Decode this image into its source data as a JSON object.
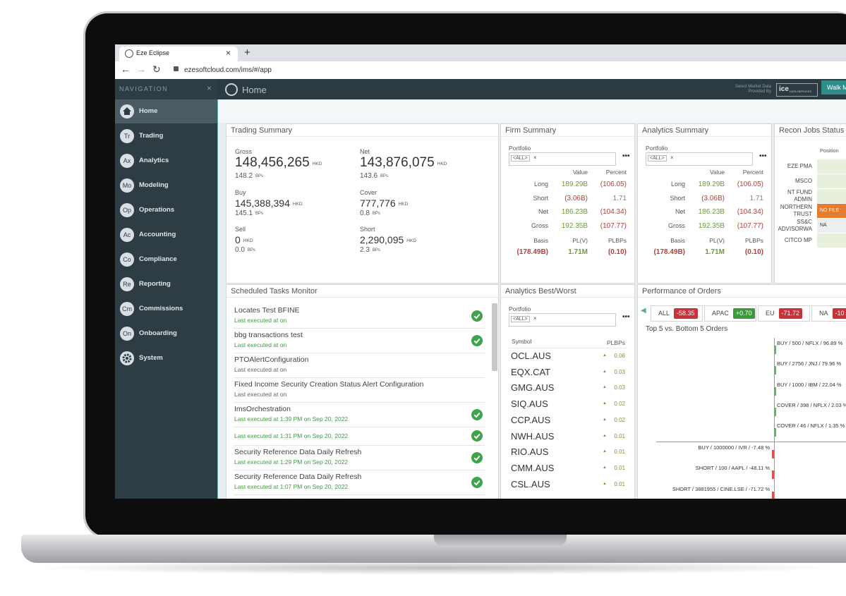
{
  "browser": {
    "tab_title": "Eze Eclipse",
    "url": "ezesoftcloud.com/ims/#/app"
  },
  "header": {
    "title": "Home",
    "market_data": "Select Market Data Provided By",
    "provider": "ice",
    "provider_sub": "DATA SERVICES",
    "button": "Walk M"
  },
  "navigation": {
    "heading": "NAVIGATION",
    "items": [
      {
        "label": "Home"
      },
      {
        "icon": "Tr",
        "label": "Trading"
      },
      {
        "icon": "Ax",
        "label": "Analytics"
      },
      {
        "icon": "Mo",
        "label": "Modeling"
      },
      {
        "icon": "Op",
        "label": "Operations"
      },
      {
        "icon": "Ac",
        "label": "Accounting"
      },
      {
        "icon": "Co",
        "label": "Compliance"
      },
      {
        "icon": "Re",
        "label": "Reporting"
      },
      {
        "icon": "Cm",
        "label": "Commissions"
      },
      {
        "icon": "On",
        "label": "Onboarding"
      },
      {
        "label": "System"
      }
    ]
  },
  "trading_summary": {
    "title": "Trading Summary",
    "fields": [
      {
        "label": "Gross",
        "value": "148,456,265",
        "unit": "HKD",
        "bps": "148.2",
        "bps_unit": "BPs"
      },
      {
        "label": "Net",
        "value": "143,876,075",
        "unit": "HKD",
        "bps": "143.6",
        "bps_unit": "BPs"
      },
      {
        "label": "Buy",
        "value": "145,388,394",
        "unit": "HKD",
        "bps": "145.1",
        "bps_unit": "BPs"
      },
      {
        "label": "Cover",
        "value": "777,776",
        "unit": "HKD",
        "bps": "0.8",
        "bps_unit": "BPs"
      },
      {
        "label": "Sell",
        "value": "0",
        "unit": "HKD",
        "bps": "0.0",
        "bps_unit": "BPs"
      },
      {
        "label": "Short",
        "value": "2,290,095",
        "unit": "HKD",
        "bps": "2.3",
        "bps_unit": "BPs"
      }
    ]
  },
  "firm_summary": {
    "title": "Firm Summary",
    "portfolio_label": "Portfolio",
    "portfolio": "<ALL>",
    "columns": [
      "Value",
      "Percent"
    ],
    "rows": [
      {
        "label": "Long",
        "value": "189.29B",
        "percent": "(106.05)"
      },
      {
        "label": "Short",
        "value": "(3.06B)",
        "percent": "1.71"
      },
      {
        "label": "Net",
        "value": "186.23B",
        "percent": "(104.34)"
      },
      {
        "label": "Gross",
        "value": "192.35B",
        "percent": "(107.77)"
      }
    ],
    "footer_columns": [
      "Basis",
      "PL(V)",
      "PLBPs"
    ],
    "footer_values": [
      "(178.49B)",
      "1.71M",
      "(0.10)"
    ]
  },
  "analytics_summary": {
    "title": "Analytics Summary",
    "portfolio_label": "Portfolio",
    "portfolio": "<ALL>",
    "columns": [
      "Value",
      "Percent"
    ],
    "rows": [
      {
        "label": "Long",
        "value": "189.29B",
        "percent": "(106.05)"
      },
      {
        "label": "Short",
        "value": "(3.06B)",
        "percent": "1.71"
      },
      {
        "label": "Net",
        "value": "186.23B",
        "percent": "(104.34)"
      },
      {
        "label": "Gross",
        "value": "192.35B",
        "percent": "(107.77)"
      }
    ],
    "footer_columns": [
      "Basis",
      "PL(V)",
      "PLBPs"
    ],
    "footer_values": [
      "(178.49B)",
      "1.71M",
      "(0.10)"
    ]
  },
  "recon_jobs": {
    "title": "Recon Jobs Status",
    "column": "Position",
    "rows": [
      {
        "label": "EZE PMA",
        "status": null
      },
      {
        "label": "MSCO",
        "status": null
      },
      {
        "label": "NT FUND ADMIN",
        "status": null
      },
      {
        "label": "NORTHERN TRUST",
        "status": "NO FILE"
      },
      {
        "label": "SS&C ADVISORWA",
        "status": "NA"
      },
      {
        "label": "CITCO MP",
        "status": null
      }
    ]
  },
  "scheduled_tasks": {
    "title": "Scheduled Tasks Monitor",
    "items": [
      {
        "name": "Locates Test BFINE",
        "detail": "Last executed at on",
        "checked": true
      },
      {
        "name": "bbg transactions test",
        "detail": "Last executed at on",
        "checked": true
      },
      {
        "name": "PTOAlertConfiguration",
        "detail": "Last executed at on",
        "checked": false
      },
      {
        "name": "Fixed Income Security Creation Status Alert Configuration",
        "detail": "Last executed at on",
        "checked": false
      },
      {
        "name": "ImsOrchestration",
        "detail": "Last executed at 1:39 PM on Sep 20, 2022",
        "checked": true
      },
      {
        "name": null,
        "detail": "Last executed at 1:31 PM on Sep 20, 2022",
        "checked": true
      },
      {
        "name": "Security Reference Data Daily Refresh",
        "detail": "Last executed at 1:29 PM on Sep 20, 2022",
        "checked": true
      },
      {
        "name": "Security Reference Data Daily Refresh",
        "detail": "Last executed at 1:07 PM on Sep 20, 2022",
        "checked": true
      }
    ]
  },
  "best_worst": {
    "title": "Analytics Best/Worst",
    "portfolio_label": "Portfolio",
    "portfolio": "<ALL>",
    "columns": [
      "Symbol",
      "PLBPs"
    ],
    "rows": [
      {
        "symbol": "OCL.AUS",
        "value": "0.06"
      },
      {
        "symbol": "EQX.CAT",
        "value": "0.03"
      },
      {
        "symbol": "GMG.AUS",
        "value": "0.03"
      },
      {
        "symbol": "SIQ.AUS",
        "value": "0.02"
      },
      {
        "symbol": "CCP.AUS",
        "value": "0.02"
      },
      {
        "symbol": "NWH.AUS",
        "value": "0.01"
      },
      {
        "symbol": "RIO.AUS",
        "value": "0.01"
      },
      {
        "symbol": "CMM.AUS",
        "value": "0.01"
      },
      {
        "symbol": "CSL.AUS",
        "value": "0.01"
      }
    ]
  },
  "orders": {
    "title": "Performance of Orders",
    "filters": [
      {
        "label": "ALL",
        "value": "-58.35"
      },
      {
        "label": "APAC",
        "value": "+0.70"
      },
      {
        "label": "EU",
        "value": "-71.72"
      },
      {
        "label": "NA",
        "value": "-10"
      }
    ],
    "subtitle": "Top 5 vs. Bottom 5 Orders",
    "top": [
      "BUY / 500 / NFLX / 96.89 %",
      "BUY / 2756 / JNJ / 79.96 %",
      "BUY / 1000 / IBM / 22.04 %",
      "COVER / 398 / NFLX / 2.03 %",
      "COVER / 46 / NFLX / 1.35 %"
    ],
    "bottom": [
      "BUY / 1000000 / IVR / -7.48 %",
      "SHORT / 100 / AAPL / -48.11 %",
      "SHORT / 3881955 / CINE.LSE / -71.72 %"
    ]
  }
}
